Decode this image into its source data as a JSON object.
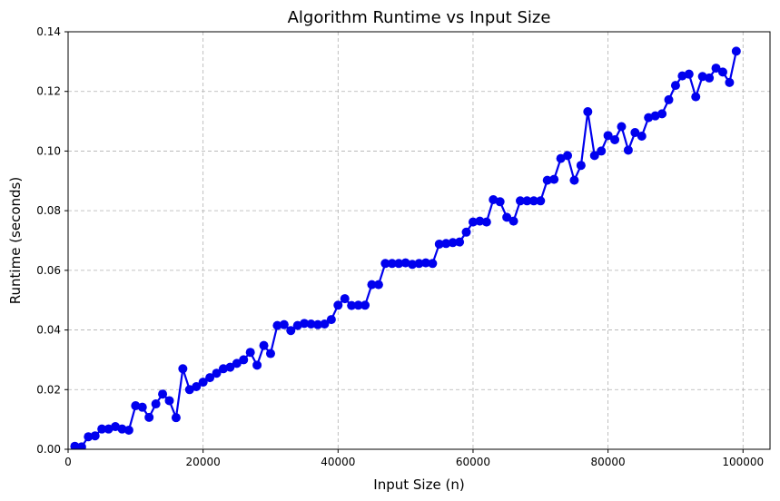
{
  "chart_data": {
    "type": "line",
    "title": "Algorithm Runtime vs Input Size",
    "xlabel": "Input Size (n)",
    "ylabel": "Runtime (seconds)",
    "xlim": [
      0,
      104000
    ],
    "ylim": [
      0,
      0.14
    ],
    "x_ticks": [
      0,
      20000,
      40000,
      60000,
      80000,
      100000
    ],
    "x_tick_labels": [
      "0",
      "20000",
      "40000",
      "60000",
      "80000",
      "100000"
    ],
    "y_ticks": [
      0.0,
      0.02,
      0.04,
      0.06,
      0.08,
      0.1,
      0.12,
      0.14
    ],
    "y_tick_labels": [
      "0.00",
      "0.02",
      "0.04",
      "0.06",
      "0.08",
      "0.10",
      "0.12",
      "0.14"
    ],
    "grid": true,
    "grid_style": "dashed",
    "legend": "none",
    "series": [
      {
        "color": "#0000ee",
        "marker": "circle",
        "x": [
          1000,
          2000,
          3000,
          4000,
          5000,
          6000,
          7000,
          8000,
          9000,
          10000,
          11000,
          12000,
          13000,
          14000,
          15000,
          16000,
          17000,
          18000,
          19000,
          20000,
          21000,
          22000,
          23000,
          24000,
          25000,
          26000,
          27000,
          28000,
          29000,
          30000,
          31000,
          32000,
          33000,
          34000,
          35000,
          36000,
          37000,
          38000,
          39000,
          40000,
          41000,
          42000,
          43000,
          44000,
          45000,
          46000,
          47000,
          48000,
          49000,
          50000,
          51000,
          52000,
          53000,
          54000,
          55000,
          56000,
          57000,
          58000,
          59000,
          60000,
          61000,
          62000,
          63000,
          64000,
          65000,
          66000,
          67000,
          68000,
          69000,
          70000,
          71000,
          72000,
          73000,
          74000,
          75000,
          76000,
          77000,
          78000,
          79000,
          80000,
          81000,
          82000,
          83000,
          84000,
          85000,
          86000,
          87000,
          88000,
          89000,
          90000,
          91000,
          92000,
          93000,
          94000,
          95000,
          96000,
          97000,
          98000,
          99000
        ],
        "y": [
          0.001,
          0.0008,
          0.0042,
          0.0045,
          0.0068,
          0.0068,
          0.0076,
          0.0068,
          0.0064,
          0.0146,
          0.0141,
          0.0107,
          0.0152,
          0.0185,
          0.0163,
          0.0106,
          0.027,
          0.02,
          0.021,
          0.0225,
          0.024,
          0.0255,
          0.027,
          0.0275,
          0.0288,
          0.03,
          0.0325,
          0.0282,
          0.0348,
          0.0321,
          0.0415,
          0.0418,
          0.0398,
          0.0415,
          0.0422,
          0.042,
          0.0418,
          0.042,
          0.0435,
          0.0483,
          0.0505,
          0.0482,
          0.0483,
          0.0483,
          0.0552,
          0.0552,
          0.0623,
          0.0623,
          0.0623,
          0.0625,
          0.062,
          0.0623,
          0.0625,
          0.0623,
          0.0688,
          0.069,
          0.0693,
          0.0695,
          0.0728,
          0.0762,
          0.0765,
          0.0762,
          0.0837,
          0.083,
          0.0778,
          0.0765,
          0.0833,
          0.0833,
          0.0833,
          0.0833,
          0.0902,
          0.0905,
          0.0975,
          0.0985,
          0.0902,
          0.0952,
          0.1132,
          0.0985,
          0.1,
          0.1052,
          0.1038,
          0.1082,
          0.1003,
          0.1062,
          0.105,
          0.1112,
          0.1118,
          0.1125,
          0.1172,
          0.122,
          0.1252,
          0.1258,
          0.1182,
          0.125,
          0.1245,
          0.1278,
          0.1265,
          0.123,
          0.1335
        ]
      }
    ]
  }
}
